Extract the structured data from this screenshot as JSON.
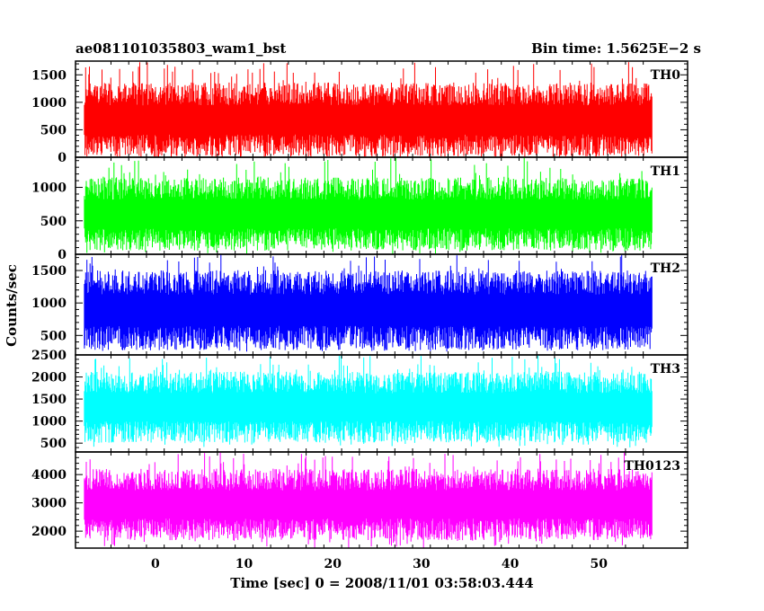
{
  "header": {
    "left_title": "ae081101035803_wam1_bst",
    "right_title": "Bin time: 1.5625E−2 s"
  },
  "chart_data": {
    "type": "line",
    "title": "ae081101035803_wam1_bst",
    "bin_time": "Bin time: 1.5625E−2 s",
    "ylabel": "Counts/sec",
    "xlabel": "Time [sec] 0 = 2008/11/01 03:58:03.444",
    "xlim": [
      -9,
      60
    ],
    "x_data_range": [
      -8,
      56
    ],
    "xticks": [
      0,
      10,
      20,
      30,
      40,
      50
    ],
    "legend_placement": "top-right",
    "grid": false,
    "panels": [
      {
        "name": "TH0",
        "color": "#ff0000",
        "ylim": [
          0,
          1750
        ],
        "yticks": [
          0,
          500,
          1000,
          1500
        ],
        "typical_low": 120,
        "typical_high": 1300,
        "min": 0,
        "max": 1750,
        "mean": 650
      },
      {
        "name": "TH1",
        "color": "#00ff00",
        "ylim": [
          0,
          1450
        ],
        "yticks": [
          0,
          500,
          1000
        ],
        "typical_low": 150,
        "typical_high": 1100,
        "min": 0,
        "max": 1450,
        "mean": 620
      },
      {
        "name": "TH2",
        "color": "#0000ff",
        "ylim": [
          200,
          1750
        ],
        "yticks": [
          500,
          1000,
          1500
        ],
        "typical_low": 380,
        "typical_high": 1450,
        "min": 250,
        "max": 1750,
        "mean": 900
      },
      {
        "name": "TH3",
        "color": "#00ffff",
        "ylim": [
          300,
          2500
        ],
        "yticks": [
          500,
          1000,
          1500,
          2000,
          2500
        ],
        "typical_low": 650,
        "typical_high": 2050,
        "min": 400,
        "max": 2500,
        "mean": 1300
      },
      {
        "name": "TH0123",
        "color": "#ff00ff",
        "ylim": [
          1400,
          4800
        ],
        "yticks": [
          2000,
          3000,
          4000
        ],
        "typical_low": 1900,
        "typical_high": 4100,
        "min": 1400,
        "max": 4800,
        "mean": 3000
      }
    ]
  }
}
